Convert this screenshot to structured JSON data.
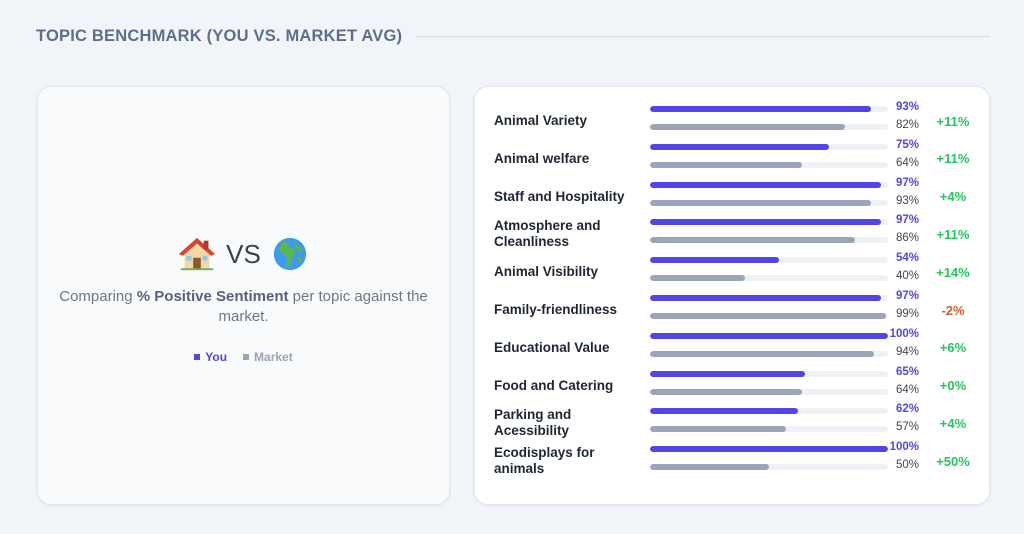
{
  "header": {
    "title": "TOPIC BENCHMARK (YOU VS. MARKET AVG)"
  },
  "comparison": {
    "left_icon": "house-icon",
    "vs_label": "VS",
    "right_icon": "globe-icon",
    "caption_prefix": "Comparing ",
    "caption_bold": "% Positive Sentiment",
    "caption_suffix": " per topic against the market."
  },
  "legend": {
    "you_label": "You",
    "market_label": "Market"
  },
  "colors": {
    "you": "#4f46e5",
    "market": "#9aa6b8",
    "positive": "#22c55e",
    "negative": "#dc5a2e"
  },
  "chart_data": {
    "type": "bar",
    "categories": [
      "Animal Variety",
      "Animal welfare",
      "Staff and Hospitality",
      "Atmosphere and Cleanliness",
      "Animal Visibility",
      "Family-friendliness",
      "Educational Value",
      "Food and Catering",
      "Parking and Acessibility",
      "Ecodisplays for animals"
    ],
    "series": [
      {
        "name": "You",
        "values": [
          93,
          75,
          97,
          97,
          54,
          97,
          100,
          65,
          62,
          100
        ]
      },
      {
        "name": "Market",
        "values": [
          82,
          64,
          93,
          86,
          40,
          99,
          94,
          64,
          57,
          50
        ]
      }
    ],
    "value_labels_you": [
      "93%",
      "75%",
      "97%",
      "97%",
      "54%",
      "97%",
      "100%",
      "65%",
      "62%",
      "100%"
    ],
    "value_labels_market": [
      "82%",
      "64%",
      "93%",
      "86%",
      "40%",
      "99%",
      "94%",
      "64%",
      "57%",
      "50%"
    ],
    "differences": [
      "+11%",
      "+11%",
      "+4%",
      "+11%",
      "+14%",
      "-2%",
      "+6%",
      "+0%",
      "+4%",
      "+50%"
    ],
    "ylim": [
      0,
      100
    ],
    "title": "",
    "xlabel": "",
    "ylabel": ""
  }
}
